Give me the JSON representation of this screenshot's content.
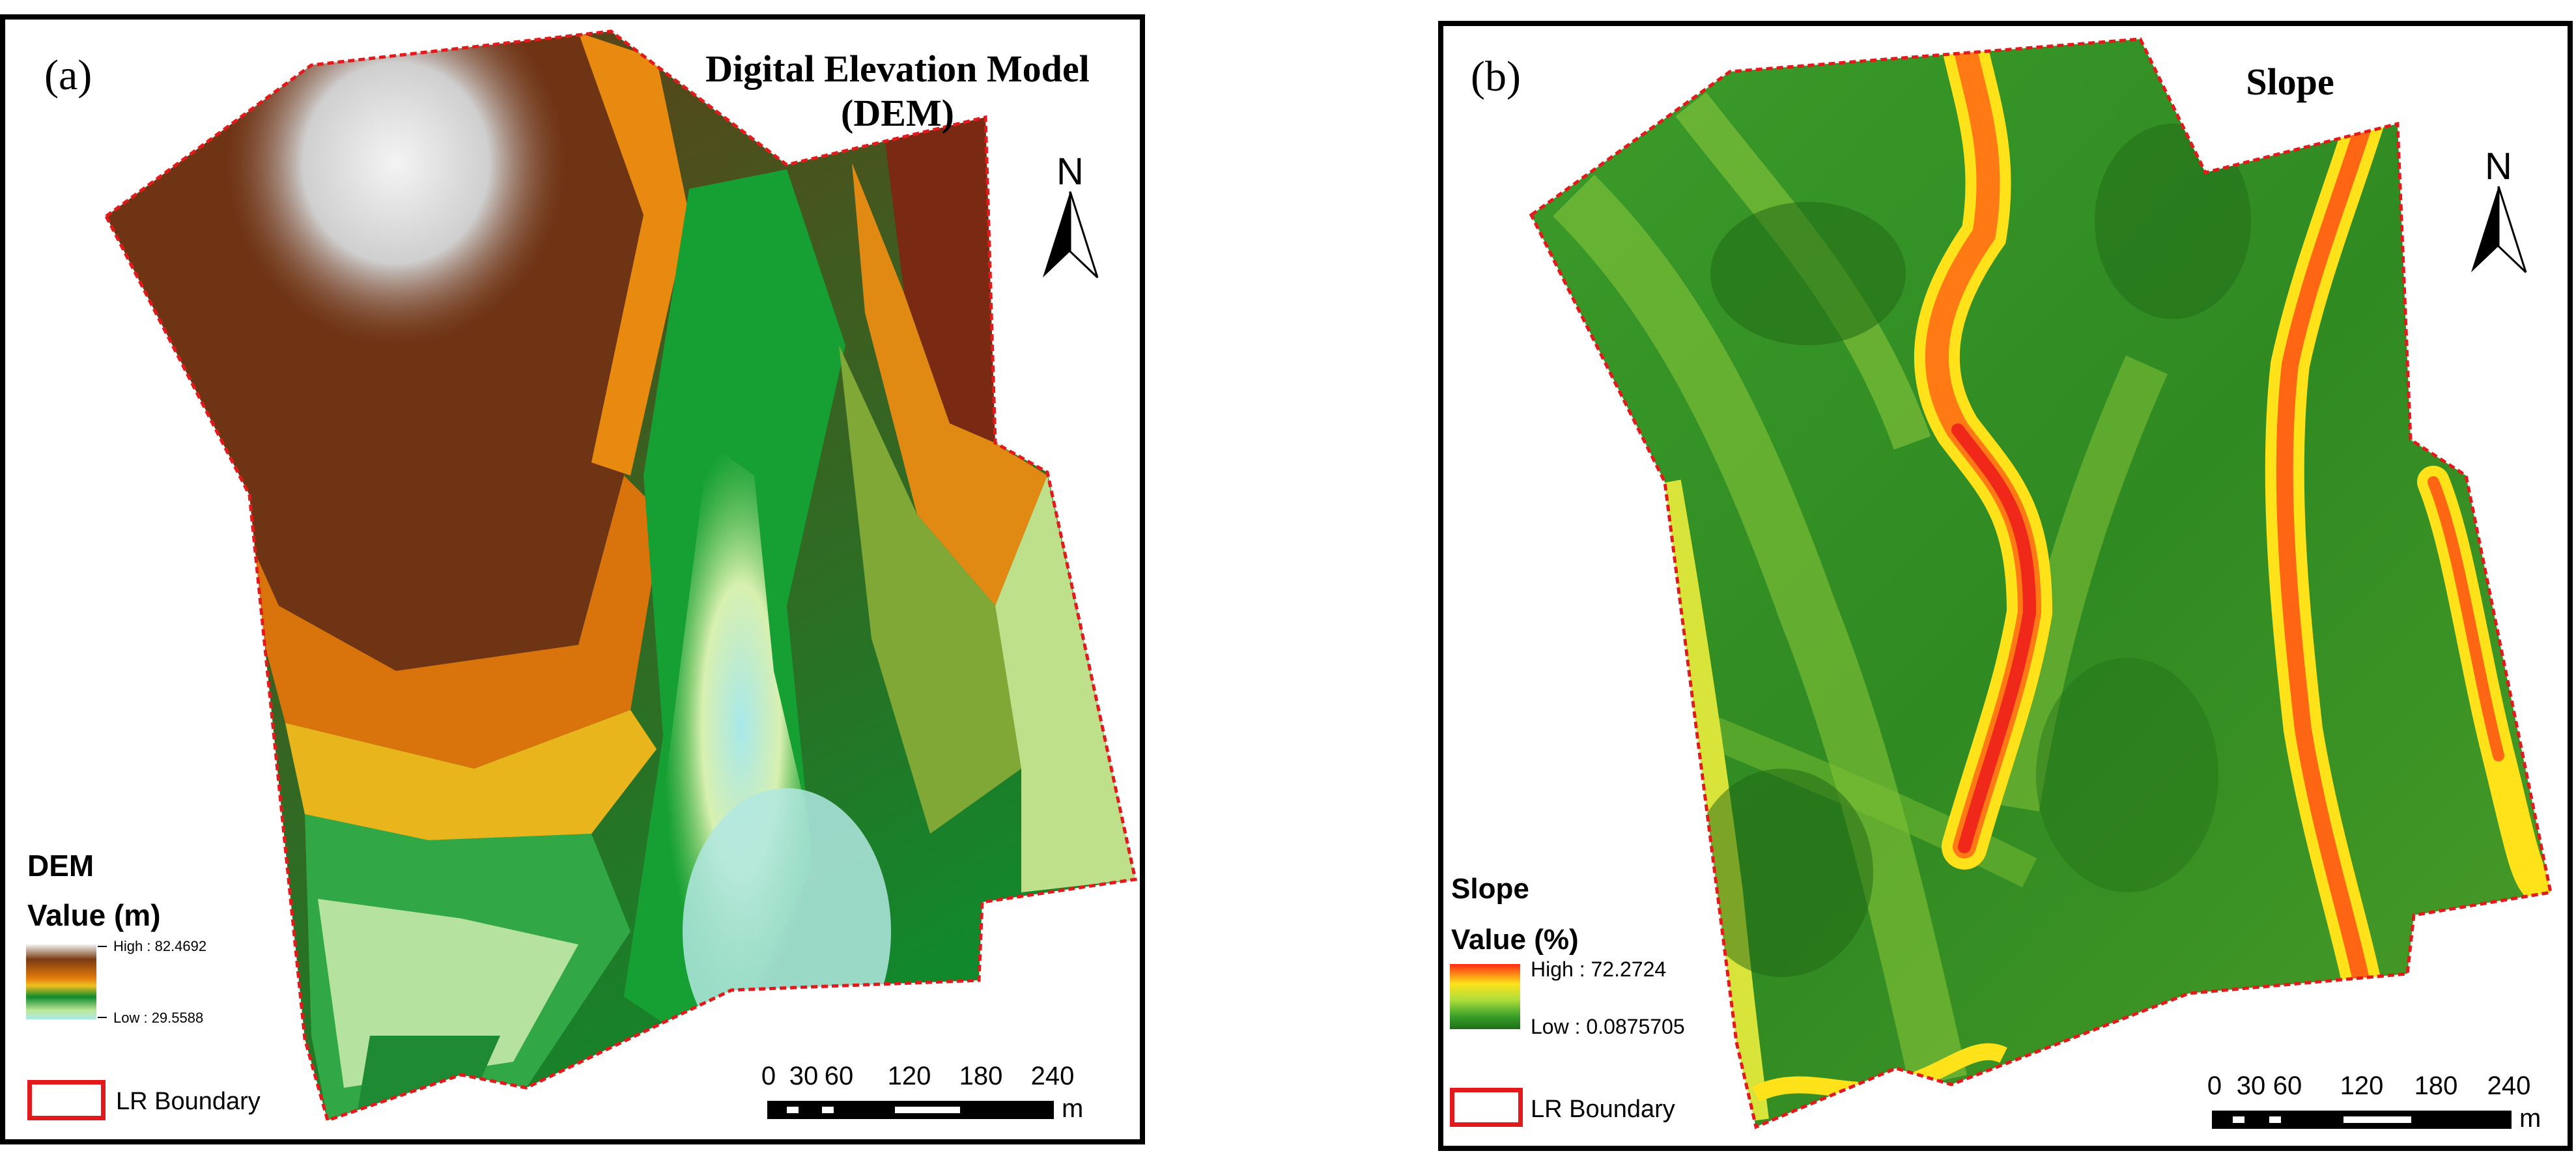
{
  "panels": [
    {
      "label": "(a)",
      "title_line1": "Digital Elevation Model",
      "title_line2": "(DEM)",
      "north": "N",
      "legend": {
        "title": "DEM",
        "subtitle": "Value (m)",
        "high_label": "High : 82.4692",
        "low_label": "Low : 29.5588",
        "ramp_colors": [
          "#f2f2f2",
          "#7a3b12",
          "#e37b0c",
          "#f0c020",
          "#0e8a2c",
          "#bfe89a",
          "#a8e8ea"
        ]
      },
      "boundary_label": "LR Boundary",
      "boundary_color": "#e31a1c",
      "scale": {
        "ticks": [
          "0",
          "30",
          "60",
          "120",
          "180",
          "240"
        ],
        "unit": "m"
      }
    },
    {
      "label": "(b)",
      "title_line1": "Slope",
      "north": "N",
      "legend": {
        "title": "Slope",
        "subtitle": "Value (%)",
        "high_label": "High : 72.2724",
        "low_label": "Low : 0.0875705",
        "ramp_colors": [
          "#ff2a14",
          "#ffe21a",
          "#aede3a",
          "#3aa02a",
          "#1e6e16"
        ]
      },
      "boundary_label": "LR Boundary",
      "boundary_color": "#e31a1c",
      "scale": {
        "ticks": [
          "0",
          "30",
          "60",
          "120",
          "180",
          "240"
        ],
        "unit": "m"
      }
    }
  ]
}
